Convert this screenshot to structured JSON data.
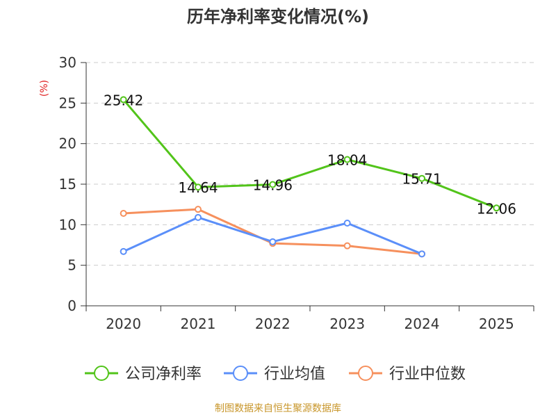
{
  "chart_data": {
    "type": "line",
    "title": "历年净利率变化情况(%)",
    "ylabel": "(%)",
    "categories": [
      "2020",
      "2021",
      "2022",
      "2023",
      "2024",
      "2025"
    ],
    "ylim": [
      0,
      30
    ],
    "yticks": [
      0,
      5,
      10,
      15,
      20,
      25,
      30
    ],
    "grid": true,
    "legend_position": "bottom",
    "series": [
      {
        "name": "公司净利率",
        "color": "#52c41a",
        "values": [
          25.42,
          14.64,
          14.96,
          18.04,
          15.71,
          12.06
        ],
        "labels": [
          "25.42",
          "14.64",
          "14.96",
          "18.04",
          "15.71",
          "12.06"
        ]
      },
      {
        "name": "行业均值",
        "color": "#5b8ff9",
        "values": [
          6.7,
          10.9,
          7.9,
          10.2,
          6.4,
          null
        ]
      },
      {
        "name": "行业中位数",
        "color": "#f6905d",
        "values": [
          11.4,
          11.9,
          7.7,
          7.4,
          6.4,
          null
        ]
      }
    ]
  },
  "footer": "制图数据来自恒生聚源数据库"
}
